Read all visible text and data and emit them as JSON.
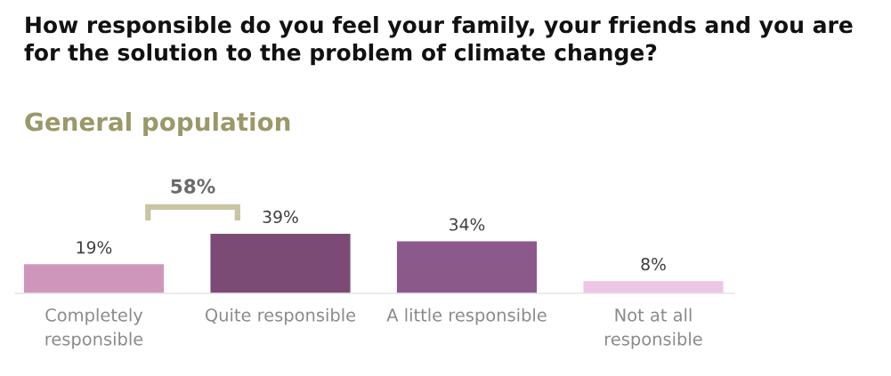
{
  "chart_data": {
    "type": "bar",
    "title": "How responsible do you feel your family, your friends and you are\nfor the solution to the problem of climate change?",
    "subtitle": "General population",
    "categories": [
      "Completely\nresponsible",
      "Quite responsible",
      "A little responsible",
      "Not at all\nresponsible"
    ],
    "values": [
      19,
      39,
      34,
      8
    ],
    "colors": [
      "#cf96bb",
      "#7b4b76",
      "#8b5a8a",
      "#ecc6e4"
    ],
    "value_labels": [
      "19%",
      "39%",
      "34%",
      "8%"
    ],
    "annotations": [
      "58%"
    ],
    "tick_labels": "x"
  }
}
